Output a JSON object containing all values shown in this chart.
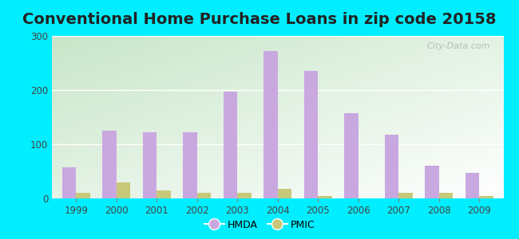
{
  "title": "Conventional Home Purchase Loans in zip code 20158",
  "years": [
    1999,
    2000,
    2001,
    2002,
    2003,
    2004,
    2005,
    2006,
    2007,
    2008,
    2009
  ],
  "hmda": [
    57,
    125,
    122,
    122,
    197,
    272,
    235,
    158,
    117,
    60,
    47
  ],
  "pmic": [
    10,
    30,
    15,
    10,
    10,
    17,
    5,
    0,
    10,
    10,
    4
  ],
  "hmda_color": "#c9a8e0",
  "pmic_color": "#c8c87a",
  "outer_bg": "#00eeff",
  "plot_bg_topleft": "#c8e6c9",
  "plot_bg_bottomright": "#ffffff",
  "ylim": [
    0,
    300
  ],
  "yticks": [
    0,
    100,
    200,
    300
  ],
  "title_fontsize": 14,
  "bar_width": 0.35,
  "watermark": "City-Data.com"
}
